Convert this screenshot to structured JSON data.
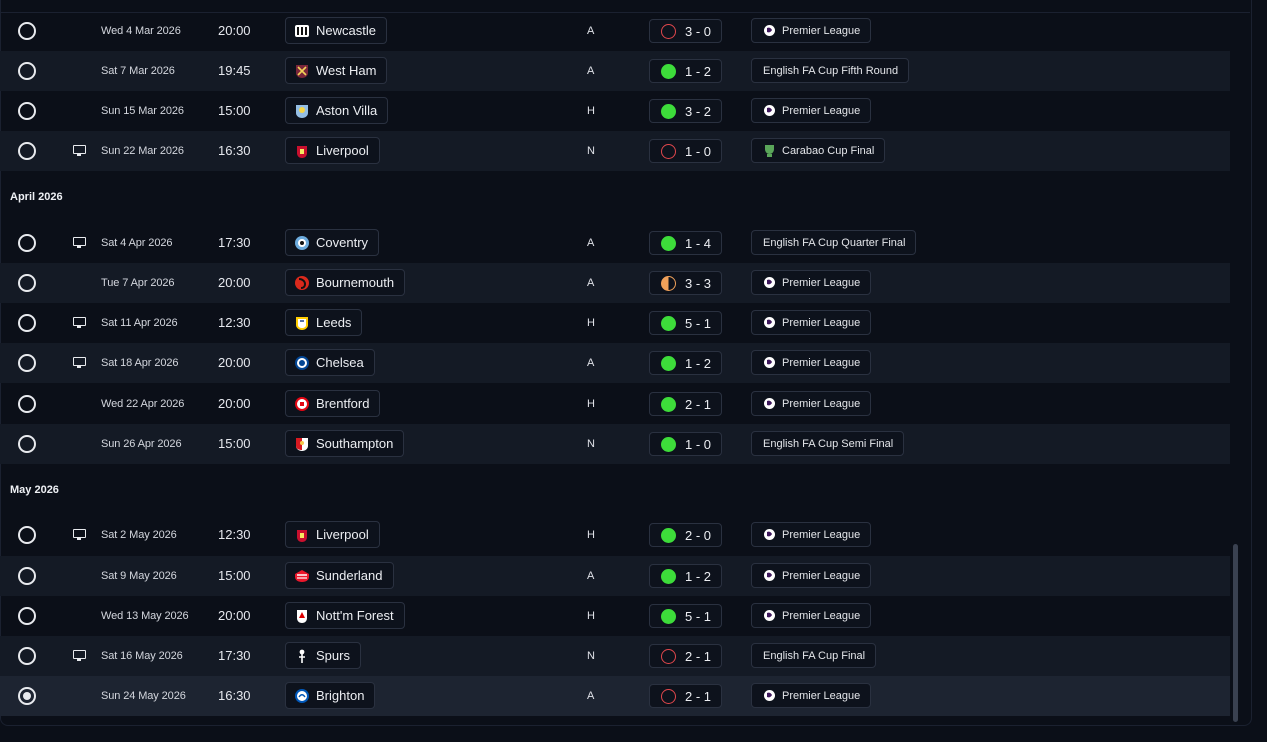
{
  "sections": [
    {
      "month": ""
    },
    {
      "month": "April 2026"
    },
    {
      "month": "May 2026"
    }
  ],
  "rows": [
    {
      "selected": false,
      "tv": false,
      "date": "Wed 4 Mar 2026",
      "time": "20:00",
      "team": "Newcastle",
      "crest": "newcastle-crest-icon",
      "venue": "A",
      "result": "loss",
      "score": "3 - 0",
      "competition": "Premier League",
      "comp_icon": "premier-league-icon"
    },
    {
      "selected": false,
      "tv": false,
      "date": "Sat 7 Mar 2026",
      "time": "19:45",
      "team": "West Ham",
      "crest": "west-ham-crest-icon",
      "venue": "A",
      "result": "win",
      "score": "1 - 2",
      "competition": "English FA Cup Fifth Round",
      "comp_icon": ""
    },
    {
      "selected": false,
      "tv": false,
      "date": "Sun 15 Mar 2026",
      "time": "15:00",
      "team": "Aston Villa",
      "crest": "aston-villa-crest-icon",
      "venue": "H",
      "result": "win",
      "score": "3 - 2",
      "competition": "Premier League",
      "comp_icon": "premier-league-icon"
    },
    {
      "selected": false,
      "tv": true,
      "date": "Sun 22 Mar 2026",
      "time": "16:30",
      "team": "Liverpool",
      "crest": "liverpool-crest-icon",
      "venue": "N",
      "result": "loss",
      "score": "1 - 0",
      "competition": "Carabao Cup Final",
      "comp_icon": "carabao-cup-icon"
    },
    {
      "selected": false,
      "tv": true,
      "date": "Sat 4 Apr 2026",
      "time": "17:30",
      "team": "Coventry",
      "crest": "coventry-crest-icon",
      "venue": "A",
      "result": "win",
      "score": "1 - 4",
      "competition": "English FA Cup Quarter Final",
      "comp_icon": ""
    },
    {
      "selected": false,
      "tv": false,
      "date": "Tue 7 Apr 2026",
      "time": "20:00",
      "team": "Bournemouth",
      "crest": "bournemouth-crest-icon",
      "venue": "A",
      "result": "draw",
      "score": "3 - 3",
      "competition": "Premier League",
      "comp_icon": "premier-league-icon"
    },
    {
      "selected": false,
      "tv": true,
      "date": "Sat 11 Apr 2026",
      "time": "12:30",
      "team": "Leeds",
      "crest": "leeds-crest-icon",
      "venue": "H",
      "result": "win",
      "score": "5 - 1",
      "competition": "Premier League",
      "comp_icon": "premier-league-icon"
    },
    {
      "selected": false,
      "tv": true,
      "date": "Sat 18 Apr 2026",
      "time": "20:00",
      "team": "Chelsea",
      "crest": "chelsea-crest-icon",
      "venue": "A",
      "result": "win",
      "score": "1 - 2",
      "competition": "Premier League",
      "comp_icon": "premier-league-icon"
    },
    {
      "selected": false,
      "tv": false,
      "date": "Wed 22 Apr 2026",
      "time": "20:00",
      "team": "Brentford",
      "crest": "brentford-crest-icon",
      "venue": "H",
      "result": "win",
      "score": "2 - 1",
      "competition": "Premier League",
      "comp_icon": "premier-league-icon"
    },
    {
      "selected": false,
      "tv": false,
      "date": "Sun 26 Apr 2026",
      "time": "15:00",
      "team": "Southampton",
      "crest": "southampton-crest-icon",
      "venue": "N",
      "result": "win",
      "score": "1 - 0",
      "competition": "English FA Cup Semi Final",
      "comp_icon": ""
    },
    {
      "selected": false,
      "tv": true,
      "date": "Sat 2 May 2026",
      "time": "12:30",
      "team": "Liverpool",
      "crest": "liverpool-crest-icon",
      "venue": "H",
      "result": "win",
      "score": "2 - 0",
      "competition": "Premier League",
      "comp_icon": "premier-league-icon"
    },
    {
      "selected": false,
      "tv": false,
      "date": "Sat 9 May 2026",
      "time": "15:00",
      "team": "Sunderland",
      "crest": "sunderland-crest-icon",
      "venue": "A",
      "result": "win",
      "score": "1 - 2",
      "competition": "Premier League",
      "comp_icon": "premier-league-icon"
    },
    {
      "selected": false,
      "tv": false,
      "date": "Wed 13 May 2026",
      "time": "20:00",
      "team": "Nott'm Forest",
      "crest": "nottm-forest-crest-icon",
      "venue": "H",
      "result": "win",
      "score": "5 - 1",
      "competition": "Premier League",
      "comp_icon": "premier-league-icon"
    },
    {
      "selected": false,
      "tv": true,
      "date": "Sat 16 May 2026",
      "time": "17:30",
      "team": "Spurs",
      "crest": "spurs-crest-icon",
      "venue": "N",
      "result": "loss",
      "score": "2 - 1",
      "competition": "English FA Cup Final",
      "comp_icon": ""
    },
    {
      "selected": true,
      "tv": false,
      "date": "Sun 24 May 2026",
      "time": "16:30",
      "team": "Brighton",
      "crest": "brighton-crest-icon",
      "venue": "A",
      "result": "loss",
      "score": "2 - 1",
      "competition": "Premier League",
      "comp_icon": "premier-league-icon"
    }
  ],
  "colors": {
    "win": "#3ddc3a",
    "loss": "#e0474c",
    "draw": "#f0a15a",
    "background": "#0b0f18",
    "row_alt": "#141a25",
    "row_selected": "#1d2431"
  }
}
